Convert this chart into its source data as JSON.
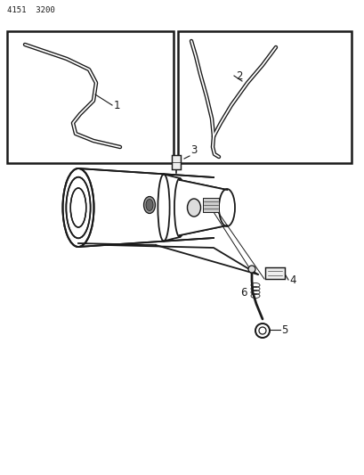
{
  "title_text": "4151  3200",
  "bg_color": "#ffffff",
  "line_color": "#1a1a1a",
  "fig_width": 4.1,
  "fig_height": 5.33,
  "dpi": 100,
  "label1": "1",
  "label2": "2",
  "label3": "3",
  "label4": "4",
  "label5": "5",
  "label6": "6"
}
